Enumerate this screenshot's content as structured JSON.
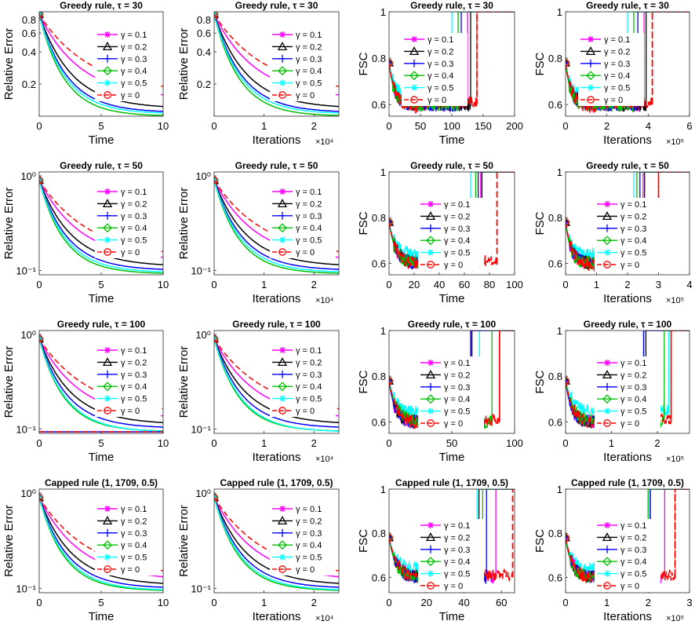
{
  "legend_labels": [
    "γ = 0.1",
    "γ = 0.2",
    "γ = 0.3",
    "γ = 0.4",
    "γ = 0.5",
    "γ = 0"
  ],
  "series_colors": [
    "#ff00ff",
    "#000000",
    "#0000ff",
    "#00c000",
    "#00ffff",
    "#ff0000"
  ],
  "chart_data": [
    {
      "type": "line",
      "title": "Greedy rule, τ = 30",
      "xlabel": "Time",
      "ylabel": "Relative Error",
      "yscale": "log",
      "xlim": [
        0,
        10
      ],
      "ylim": [
        0.1,
        0.95
      ],
      "xticks": [
        "0",
        "5",
        "10"
      ],
      "yticks": [
        "0.2",
        "0.4",
        "0.6",
        "0.8"
      ],
      "x_exponent": "",
      "series_final": [
        0.145,
        0.118,
        0.108,
        0.1,
        0.105,
        0.165
      ]
    },
    {
      "type": "line",
      "title": "Greedy rule, τ = 30",
      "xlabel": "Iterations",
      "ylabel": "Relative Error",
      "yscale": "log",
      "xlim": [
        0,
        2.5
      ],
      "ylim": [
        0.1,
        0.95
      ],
      "xticks": [
        "0",
        "1",
        "2"
      ],
      "yticks": [
        "0.2",
        "0.4",
        "0.6",
        "0.8"
      ],
      "x_exponent": "×10⁴",
      "series_final": [
        0.145,
        0.118,
        0.108,
        0.1,
        0.105,
        0.165
      ]
    },
    {
      "type": "line",
      "title": "Greedy rule, τ = 30",
      "xlabel": "Time",
      "ylabel": "FSC",
      "yscale": "linear",
      "xlim": [
        0,
        200
      ],
      "ylim": [
        0.55,
        1
      ],
      "xticks": [
        "0",
        "50",
        "100",
        "150",
        "200"
      ],
      "yticks": [
        "0.6",
        "0.8",
        "1"
      ],
      "x_exponent": "",
      "jump_x": [
        125,
        130,
        115,
        110,
        100,
        140
      ]
    },
    {
      "type": "line",
      "title": "Greedy rule, τ = 30",
      "xlabel": "Iterations",
      "ylabel": "FSC",
      "yscale": "linear",
      "xlim": [
        0,
        6
      ],
      "ylim": [
        0.55,
        1
      ],
      "xticks": [
        "0",
        "2",
        "4",
        "6"
      ],
      "yticks": [
        "0.6",
        "0.8",
        "1"
      ],
      "x_exponent": "×10⁵",
      "jump_x": [
        3.8,
        3.9,
        3.5,
        3.3,
        3.0,
        4.2
      ]
    },
    {
      "type": "line",
      "title": "Greedy rule, τ = 50",
      "xlabel": "Time",
      "ylabel": "Relative Error",
      "yscale": "log",
      "xlim": [
        0,
        10
      ],
      "ylim": [
        0.09,
        1.1
      ],
      "xticks": [
        "0",
        "5",
        "10"
      ],
      "yticks": [
        "10⁻¹",
        "10⁰"
      ],
      "x_exponent": "",
      "series_final": [
        0.125,
        0.11,
        0.1,
        0.092,
        0.095,
        0.135
      ]
    },
    {
      "type": "line",
      "title": "Greedy rule, τ = 50",
      "xlabel": "Iterations",
      "ylabel": "Relative Error",
      "yscale": "log",
      "xlim": [
        0,
        2.5
      ],
      "ylim": [
        0.09,
        1.1
      ],
      "xticks": [
        "0",
        "1",
        "2"
      ],
      "yticks": [
        "10⁻¹",
        "10⁰"
      ],
      "x_exponent": "×10⁴",
      "series_final": [
        0.125,
        0.11,
        0.1,
        0.092,
        0.095,
        0.135
      ]
    },
    {
      "type": "line",
      "title": "Greedy rule, τ = 50",
      "xlabel": "Time",
      "ylabel": "FSC",
      "yscale": "linear",
      "xlim": [
        0,
        100
      ],
      "ylim": [
        0.55,
        1
      ],
      "xticks": [
        "0",
        "20",
        "40",
        "60",
        "80",
        "100"
      ],
      "yticks": [
        "0.6",
        "0.8",
        "1"
      ],
      "x_exponent": "",
      "jump_x": [
        73,
        74,
        71,
        69,
        65,
        86
      ]
    },
    {
      "type": "line",
      "title": "Greedy rule, τ = 50",
      "xlabel": "Iterations",
      "ylabel": "FSC",
      "yscale": "linear",
      "xlim": [
        0,
        4
      ],
      "ylim": [
        0.55,
        1
      ],
      "xticks": [
        "0",
        "1",
        "2",
        "3",
        "4"
      ],
      "yticks": [
        "0.6",
        "0.8",
        "1"
      ],
      "x_exponent": "×10⁵",
      "jump_x": [
        2.5,
        2.55,
        2.4,
        2.3,
        2.2,
        3.0
      ]
    },
    {
      "type": "line",
      "title": "Greedy rule, τ = 100",
      "xlabel": "Time",
      "ylabel": "Relative Error",
      "yscale": "log",
      "xlim": [
        0,
        10
      ],
      "ylim": [
        0.09,
        1.1
      ],
      "xticks": [
        "0",
        "5",
        "10"
      ],
      "yticks": [
        "10⁻¹",
        "10⁰"
      ],
      "x_exponent": "",
      "series_final": [
        0.125,
        0.112,
        0.102,
        0.094,
        0.093,
        0.14
      ]
    },
    {
      "type": "line",
      "title": "Greedy rule, τ = 100",
      "xlabel": "Iterations",
      "ylabel": "Relative Error",
      "yscale": "log",
      "xlim": [
        0,
        2.5
      ],
      "ylim": [
        0.09,
        1.1
      ],
      "xticks": [
        "0",
        "1",
        "2"
      ],
      "yticks": [
        "10⁻¹",
        "10⁰"
      ],
      "x_exponent": "×10⁴",
      "series_final": [
        0.125,
        0.112,
        0.102,
        0.094,
        0.093,
        0.14
      ]
    },
    {
      "type": "line",
      "title": "Greedy rule, τ = 100",
      "xlabel": "Time",
      "ylabel": "FSC",
      "yscale": "linear",
      "xlim": [
        0,
        100
      ],
      "ylim": [
        0.55,
        1
      ],
      "xticks": [
        "0",
        "50",
        "100"
      ],
      "yticks": [
        "0.6",
        "0.8",
        "1"
      ],
      "x_exponent": "",
      "jump_x": [
        65,
        66,
        65,
        82,
        72,
        88
      ]
    },
    {
      "type": "line",
      "title": "Greedy rule, τ = 100",
      "xlabel": "Iterations",
      "ylabel": "FSC",
      "yscale": "linear",
      "xlim": [
        0,
        2.7
      ],
      "ylim": [
        0.55,
        1
      ],
      "xticks": [
        "0",
        "1",
        "2"
      ],
      "yticks": [
        "0.6",
        "0.8",
        "1"
      ],
      "x_exponent": "×10⁵",
      "jump_x": [
        1.7,
        1.75,
        1.7,
        2.15,
        2.25,
        2.3
      ]
    },
    {
      "type": "line",
      "title": "Capped rule (1, 1709, 0.5)",
      "xlabel": "Time",
      "ylabel": "Relative Error",
      "yscale": "log",
      "xlim": [
        0,
        10
      ],
      "ylim": [
        0.09,
        1.1
      ],
      "xticks": [
        "0",
        "5",
        "10"
      ],
      "yticks": [
        "10⁻¹",
        "10⁰"
      ],
      "x_exponent": "",
      "series_final": [
        0.12,
        0.108,
        0.1,
        0.094,
        0.095,
        0.13
      ]
    },
    {
      "type": "line",
      "title": "Capped rule (1, 1709, 0.5)",
      "xlabel": "Iterations",
      "ylabel": "Relative Error",
      "yscale": "log",
      "xlim": [
        0,
        2.5
      ],
      "ylim": [
        0.09,
        1.1
      ],
      "xticks": [
        "0",
        "1",
        "2"
      ],
      "yticks": [
        "10⁻¹",
        "10⁰"
      ],
      "x_exponent": "×10⁴",
      "series_final": [
        0.12,
        0.108,
        0.1,
        0.094,
        0.095,
        0.13
      ]
    },
    {
      "type": "line",
      "title": "Capped rule (1, 1709, 0.5)",
      "xlabel": "Time",
      "ylabel": "FSC",
      "yscale": "linear",
      "xlim": [
        0,
        67
      ],
      "ylim": [
        0.53,
        1
      ],
      "xticks": [
        "0",
        "20",
        "40",
        "60"
      ],
      "yticks": [
        "0.6",
        "0.8",
        "1"
      ],
      "x_exponent": "",
      "jump_x": [
        57,
        48,
        52,
        50,
        47,
        66
      ]
    },
    {
      "type": "line",
      "title": "Capped rule (1, 1709, 0.5)",
      "xlabel": "Iterations",
      "ylabel": "FSC",
      "yscale": "linear",
      "xlim": [
        0,
        3
      ],
      "ylim": [
        0.53,
        1
      ],
      "xticks": [
        "0",
        "1",
        "2",
        "3"
      ],
      "yticks": [
        "0.6",
        "0.8",
        "1"
      ],
      "x_exponent": "×10⁵",
      "jump_x": [
        2.4,
        2.05,
        2.05,
        2.0,
        2.0,
        2.65
      ]
    }
  ]
}
